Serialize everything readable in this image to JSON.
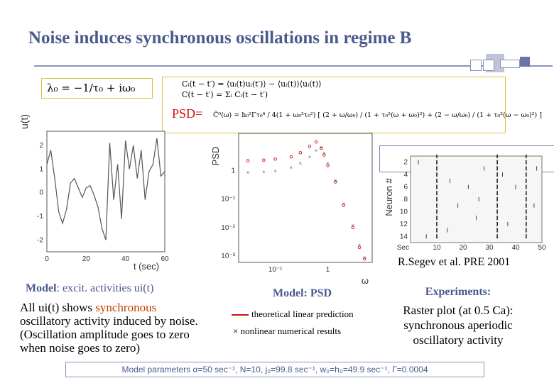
{
  "slide": {
    "title": "Noise induces synchronous oscillations in regime B",
    "eigenvalue": "λ₀ = −1/τ₀ + iω₀",
    "correlation_line1": "Cᵢ(t − t′) = ⟨uᵢ(t)uᵢ(t′)⟩ − ⟨uᵢ(t)⟩⟨uᵢ(t)⟩",
    "correlation_line2": "C(t − t′) = Σᵢ Cᵢ(t − t′)",
    "psd_label": "PSD=",
    "psd_formula": "C̃⁰(ω) = h₀²Γτ₀⁴ / 4(1 + ω₀²τ₀²) [ (2 + ω/ω₀) / (1 + τ₀²(ω + ω₀)²) + (2 − ω/ω₀) / (1 + τ₀²(ω − ω₀)²) ]",
    "model1_bold": "Model",
    "model1_rest": ": excit. activities ui(t)",
    "desc1_pre": "All ui(t) shows ",
    "desc1_highlight": "synchronous",
    "desc1_post": " oscillatory activity induced by noise. (Oscillation amplitude goes to zero when noise goes to zero)",
    "model2": "Model: PSD",
    "legend_linear": "theoretical linear prediction",
    "legend_nonlinear": "× nonlinear numerical results",
    "exp_title": "Experiments:",
    "exp_desc": "Raster plot (at 0.5 Ca): synchronous aperiodic oscillatory activity",
    "reference": "R.Segev et al. PRE 2001",
    "params": "Model parameters α=50 sec⁻¹, N=10, j₀=99.8 sec⁻¹, w₀=h₀=49.9 sec⁻¹, Γ=0.0004"
  },
  "chart_data": [
    {
      "type": "line",
      "xlabel": "t (sec)",
      "ylabel": "u(t)",
      "xlim": [
        0,
        60
      ],
      "ylim": [
        -2.5,
        2.6
      ],
      "xticks": [
        "0",
        "20",
        "40",
        "60"
      ],
      "yticks": [
        "-2",
        "-1",
        "0",
        "1",
        "2"
      ],
      "series": [
        {
          "x": [
            0,
            2,
            4,
            6,
            8,
            10,
            12,
            14,
            16,
            18,
            20,
            22,
            24,
            26,
            28,
            30,
            32,
            34,
            36,
            38,
            40,
            42,
            44,
            46,
            48,
            50,
            52,
            54,
            56,
            58,
            60
          ],
          "y": [
            1.2,
            1.8,
            0.6,
            -0.8,
            -1.3,
            -0.7,
            0.4,
            0.6,
            0.2,
            -0.2,
            0.2,
            0.3,
            -0.1,
            -0.6,
            -1.5,
            -2.0,
            2.1,
            -0.3,
            1.2,
            -1.1,
            2.2,
            1.0,
            2.0,
            0.6,
            1.8,
            -0.3,
            0.9,
            1.2,
            2.3,
            0.7,
            0.9
          ]
        }
      ]
    },
    {
      "type": "scatter",
      "xlabel": "ω",
      "ylabel": "PSD",
      "xscale": "log",
      "yscale": "log",
      "xtick_labels": [
        "10⁻¹",
        "1"
      ],
      "ytick_labels": [
        "1",
        "10⁻¹",
        "10⁻²",
        "10⁻³"
      ],
      "series": [
        {
          "name": "theoretical linear prediction",
          "x": [
            0.03,
            0.06,
            0.1,
            0.2,
            0.3,
            0.45,
            0.6,
            0.75,
            0.85,
            1.0,
            1.4,
            2.0,
            3.0,
            4.0,
            5.0
          ],
          "y": [
            2.2,
            2.3,
            2.5,
            3.0,
            4.2,
            7.0,
            10.0,
            6.0,
            3.5,
            1.5,
            0.4,
            0.06,
            0.01,
            0.002,
            0.0008
          ]
        },
        {
          "name": "nonlinear numerical results",
          "x": [
            0.03,
            0.06,
            0.1,
            0.2,
            0.3,
            0.45,
            0.6,
            0.75,
            0.85,
            1.0,
            1.4,
            2.0,
            3.0,
            4.0,
            5.0
          ],
          "y": [
            0.85,
            0.9,
            0.95,
            1.3,
            1.8,
            3.0,
            5.0,
            6.5,
            4.0,
            1.8,
            0.45,
            0.07,
            0.012,
            0.0025,
            0.0009
          ]
        }
      ]
    },
    {
      "type": "scatter",
      "xlabel": "Sec",
      "ylabel": "Neuron #",
      "xlim": [
        0,
        50
      ],
      "ylim": [
        1,
        15
      ],
      "xticks": [
        "10",
        "20",
        "30",
        "40",
        "50"
      ],
      "yticks": [
        "2",
        "4",
        "6",
        "8",
        "10",
        "12",
        "14"
      ],
      "burst_times": [
        10,
        33,
        44
      ],
      "spikes": [
        [
          3,
          2
        ],
        [
          15,
          5
        ],
        [
          25,
          11
        ],
        [
          22,
          6
        ],
        [
          37,
          12
        ],
        [
          47,
          9
        ],
        [
          6,
          14
        ],
        [
          28,
          3
        ],
        [
          18,
          9
        ],
        [
          40,
          6
        ],
        [
          14,
          13
        ],
        [
          26,
          8
        ],
        [
          48,
          3
        ],
        [
          35,
          4
        ]
      ]
    }
  ]
}
